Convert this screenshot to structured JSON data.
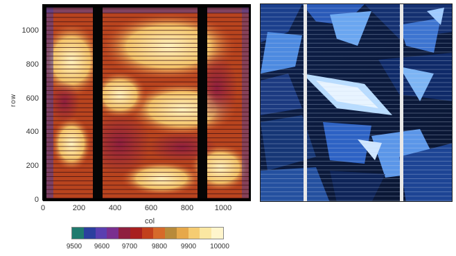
{
  "left_panel": {
    "y_axis_label": "row",
    "x_axis_label": "col",
    "y_ticks": [
      "0",
      "200",
      "400",
      "600",
      "800",
      "1000"
    ],
    "x_ticks": [
      "0",
      "200",
      "400",
      "600",
      "800",
      "1000"
    ],
    "description_icon": "thermal-heatmap-icon"
  },
  "colorbar": {
    "labels": [
      "9500",
      "9600",
      "9700",
      "9800",
      "9900",
      "10000"
    ],
    "colors": [
      "#1f7a6e",
      "#2b3f9e",
      "#5a3fb0",
      "#7a2f8f",
      "#8f1f3f",
      "#a8201f",
      "#c2401c",
      "#d66a2a",
      "#b88a3a",
      "#e6a84a",
      "#f5cc72",
      "#fbe7a2",
      "#fff5cc"
    ]
  },
  "right_panel": {
    "description_icon": "solar-cell-photo-icon"
  }
}
